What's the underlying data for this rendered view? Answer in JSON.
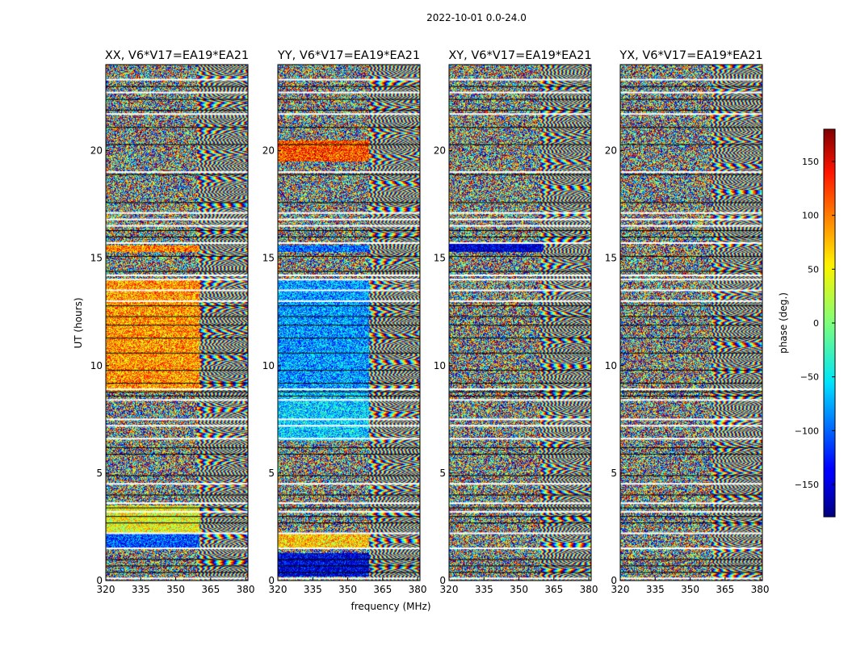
{
  "figure": {
    "suptitle": "2022-10-01 0.0-24.0",
    "xlabel": "frequency (MHz)",
    "ylabel": "UT (hours)"
  },
  "colorbar": {
    "label": "phase (deg.)",
    "range": [
      -180,
      180
    ],
    "ticks": [
      150,
      100,
      50,
      0,
      -50,
      -100,
      -150
    ],
    "tick_labels": [
      "150",
      "100",
      "50",
      "0",
      "−50",
      "−100",
      "−150"
    ],
    "colormap": "jet"
  },
  "chart_data": [
    {
      "type": "heatmap",
      "title": "XX, V6*V17=EA19*EA21",
      "xlim": [
        320,
        381
      ],
      "ylim": [
        0,
        24
      ],
      "xticks": [
        320,
        335,
        350,
        365,
        380
      ],
      "xtick_labels": [
        "320",
        "335",
        "350",
        "365",
        "380"
      ],
      "yticks": [
        0,
        5,
        10,
        15,
        20
      ],
      "ytick_labels": [
        "0",
        "5",
        "10",
        "15",
        "20"
      ],
      "phase_regions": [
        {
          "f": [
            320,
            360
          ],
          "t": [
            8.8,
            14.0
          ],
          "phase": 80
        },
        {
          "f": [
            320,
            360
          ],
          "t": [
            15.3,
            15.6
          ],
          "phase": 90
        },
        {
          "f": [
            320,
            360
          ],
          "t": [
            1.5,
            2.2
          ],
          "phase": -110
        },
        {
          "f": [
            320,
            360
          ],
          "t": [
            2.2,
            3.5
          ],
          "phase": 40
        }
      ]
    },
    {
      "type": "heatmap",
      "title": "YY, V6*V17=EA19*EA21",
      "xlim": [
        320,
        381
      ],
      "ylim": [
        0,
        24
      ],
      "xticks": [
        320,
        335,
        350,
        365,
        380
      ],
      "xtick_labels": [
        "320",
        "335",
        "350",
        "365",
        "380"
      ],
      "yticks": [
        0,
        5,
        10,
        15,
        20
      ],
      "ytick_labels": [
        "0",
        "5",
        "10",
        "15",
        "20"
      ],
      "phase_regions": [
        {
          "f": [
            320,
            359
          ],
          "t": [
            8.8,
            14.0
          ],
          "phase": -80
        },
        {
          "f": [
            320,
            359
          ],
          "t": [
            6.5,
            8.8
          ],
          "phase": -60
        },
        {
          "f": [
            320,
            359
          ],
          "t": [
            1.5,
            2.2
          ],
          "phase": 60
        },
        {
          "f": [
            320,
            359
          ],
          "t": [
            0.2,
            1.3
          ],
          "phase": -150
        },
        {
          "f": [
            320,
            359
          ],
          "t": [
            15.3,
            15.6
          ],
          "phase": -100
        },
        {
          "f": [
            320,
            359
          ],
          "t": [
            19.5,
            20.5
          ],
          "phase": 110
        }
      ]
    },
    {
      "type": "heatmap",
      "title": "XY, V6*V17=EA19*EA21",
      "xlim": [
        320,
        381
      ],
      "ylim": [
        0,
        24
      ],
      "xticks": [
        320,
        335,
        350,
        365,
        380
      ],
      "xtick_labels": [
        "320",
        "335",
        "350",
        "365",
        "380"
      ],
      "yticks": [
        0,
        5,
        10,
        15,
        20
      ],
      "ytick_labels": [
        "0",
        "5",
        "10",
        "15",
        "20"
      ],
      "phase_regions": [
        {
          "f": [
            320,
            360
          ],
          "t": [
            15.3,
            15.7
          ],
          "phase": -160
        }
      ]
    },
    {
      "type": "heatmap",
      "title": "YX, V6*V17=EA19*EA21",
      "xlim": [
        320,
        381
      ],
      "ylim": [
        0,
        24
      ],
      "xticks": [
        320,
        335,
        350,
        365,
        380
      ],
      "xtick_labels": [
        "320",
        "335",
        "350",
        "365",
        "380"
      ],
      "yticks": [
        0,
        5,
        10,
        15,
        20
      ],
      "ytick_labels": [
        "0",
        "5",
        "10",
        "15",
        "20"
      ],
      "phase_regions": []
    }
  ]
}
